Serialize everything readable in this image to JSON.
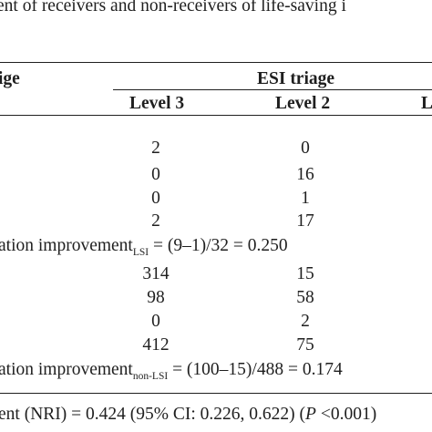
{
  "caption": {
    "text": "ent of receivers and non-receivers of life-saving i"
  },
  "table": {
    "left_header": "ige",
    "group_header": "ESI triage",
    "columns": [
      "Level 3",
      "Level 2",
      "L"
    ],
    "lsi_rows": [
      {
        "level3": "2",
        "level2": "0"
      },
      {
        "level3": "0",
        "level2": "16"
      },
      {
        "level3": "0",
        "level2": "1"
      },
      {
        "level3": "2",
        "level2": "17"
      }
    ],
    "lsi_summary": {
      "prefix": "ation improvement",
      "subscript": "LSI",
      "formula": " = (9–1)/32 = 0.250"
    },
    "nonlsi_rows": [
      {
        "level3": "314",
        "level2": "15"
      },
      {
        "level3": "98",
        "level2": "58"
      },
      {
        "level3": "0",
        "level2": "2"
      },
      {
        "level3": "412",
        "level2": "75"
      }
    ],
    "nonlsi_summary": {
      "prefix": "ation improvement",
      "subscript": "non-LSI",
      "formula": " = (100–15)/488 = 0.174"
    },
    "footer": {
      "prefix": "ent (NRI) = 0.424 (95% CI: 0.226, 0.622) (",
      "p": "P",
      "suffix": " <0.001)"
    }
  }
}
